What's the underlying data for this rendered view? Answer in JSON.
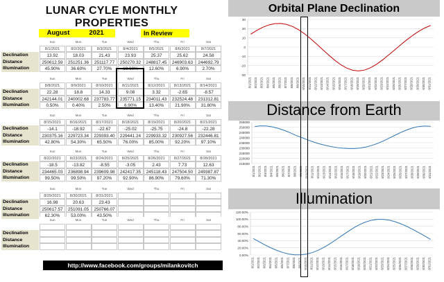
{
  "title": "LUNAR CYLE MONTHLY PROPERTIES",
  "month": "August",
  "year": "2021",
  "review_label": "In Review",
  "row_labels": [
    "Declination",
    "Distance",
    "Illumination"
  ],
  "weeks": [
    {
      "days": [
        "Sun",
        "Mon",
        "Tue",
        "Wed",
        "Thu",
        "Fri",
        "Sat"
      ],
      "dates": [
        "8/1/2021",
        "8/2/2021",
        "8/3/2021",
        "8/4/2021",
        "8/5/2021",
        "8/6/2021",
        "8/7/2021"
      ],
      "declination": [
        "13.92",
        "18.03",
        "21.43",
        "23.93",
        "25.37",
        "25.62",
        "24.58"
      ],
      "distance": [
        "250612.59",
        "251251.36",
        "251117.77",
        "250270.32",
        "248817.45",
        "246903.63",
        "244692.79"
      ],
      "illumination": [
        "45.90%",
        "36.60%",
        "27.70%",
        "19.60%",
        "12.60%",
        "6.90%",
        "2.70%"
      ]
    },
    {
      "days": [
        "Sun",
        "Mon",
        "Tue",
        "Wed",
        "Thu",
        "Fri",
        "Sat"
      ],
      "dates": [
        "8/8/2021",
        "8/9/2021",
        "8/10/2021",
        "8/11/2021",
        "8/12/2021",
        "8/13/2021",
        "8/14/2021"
      ],
      "declination": [
        "22.28",
        "18.8",
        "14.33",
        "9.08",
        "3.32",
        "-2.65",
        "-8.57"
      ],
      "distance": [
        "242144.01",
        "240002.68",
        "237783.77",
        "235771.15",
        "234011.43",
        "232524.48",
        "231312.81"
      ],
      "illumination": [
        "0.50%",
        "0.40%",
        "2.50%",
        "6.90%",
        "13.40%",
        "21.90%",
        "31.80%"
      ]
    },
    {
      "days": [
        "Sun",
        "Mon",
        "Tue",
        "Wed",
        "Thu",
        "Fri",
        "Sat"
      ],
      "dates": [
        "8/15/2021",
        "8/16/2021",
        "8/17/2021",
        "8/18/2021",
        "8/19/2021",
        "8/20/2021",
        "8/21/2021"
      ],
      "declination": [
        "-14.1",
        "-18.92",
        "-22.67",
        "-25.02",
        "-25.75",
        "-24.8",
        "-22.28"
      ],
      "distance": [
        "230375.16",
        "229723.34",
        "229393.40",
        "229441.24",
        "229933.32",
        "230927.56",
        "232446.81"
      ],
      "illumination": [
        "42.80%",
        "54.30%",
        "65.50%",
        "76.00%",
        "85.00%",
        "92.20%",
        "97.10%"
      ]
    },
    {
      "days": [
        "Sun",
        "Mon",
        "Tue",
        "Wed",
        "Thu",
        "Fri",
        "Sat"
      ],
      "dates": [
        "8/22/2021",
        "8/23/2021",
        "8/24/2021",
        "8/25/2021",
        "8/26/2021",
        "8/27/2021",
        "8/28/2021"
      ],
      "declination": [
        "-18.5",
        "-13.82",
        "-8.55",
        "-3.05",
        "2.43",
        "7.73",
        "12.63"
      ],
      "distance": [
        "234465.03",
        "236898.94",
        "239609.98",
        "242417.35",
        "245118.43",
        "247504.50",
        "249387.87"
      ],
      "illumination": [
        "99.50%",
        "99.50%",
        "97.20%",
        "92.90%",
        "86.90%",
        "79.60%",
        "71.30%"
      ]
    },
    {
      "days": [
        "Sun",
        "Mon",
        "Tue",
        "Wed",
        "Thu",
        "Fri",
        "Sat"
      ],
      "dates": [
        "8/29/2021",
        "8/30/2021",
        "8/31/2021",
        "",
        "",
        "",
        ""
      ],
      "declination": [
        "16.98",
        "20.63",
        "23.43",
        "",
        "",
        "",
        ""
      ],
      "distance": [
        "250617.57",
        "251091.05",
        "250766.07",
        "",
        "",
        "",
        ""
      ],
      "illumination": [
        "62.30%",
        "53.00%",
        "43.50%",
        "",
        "",
        "",
        ""
      ]
    },
    {
      "days": [
        "Sun",
        "Mon",
        "Tue",
        "Wed",
        "Thu",
        "Fri",
        "Sat"
      ],
      "dates": [
        "",
        "",
        "",
        "",
        "",
        "",
        ""
      ],
      "declination": [
        "",
        "",
        "",
        "",
        "",
        "",
        ""
      ],
      "distance": [
        "",
        "",
        "",
        "",
        "",
        "",
        ""
      ],
      "illumination": [
        "",
        "",
        "",
        "",
        "",
        "",
        ""
      ]
    }
  ],
  "url": "http://www.facebook.com/groups/milankovitch",
  "charts": [
    {
      "title": "Orbital Plane Declination",
      "y_ticks": [
        "30",
        "20",
        "10",
        "0",
        "-10",
        "-20",
        "-30"
      ],
      "ylim": [
        -30,
        30
      ]
    },
    {
      "title": "Distance from Earth",
      "y_ticks": [
        "255000",
        "250000",
        "245000",
        "240000",
        "235000",
        "230000",
        "225000",
        "220000",
        "215000"
      ],
      "ylim": [
        215000,
        255000
      ]
    },
    {
      "title": "Illumination",
      "y_ticks": [
        "120.00%",
        "100.00%",
        "80.00%",
        "60.00%",
        "40.00%",
        "20.00%",
        "0.00%"
      ],
      "ylim": [
        0,
        120
      ]
    }
  ],
  "x_dates": [
    "8/1/2021",
    "8/2/2021",
    "8/3/2021",
    "8/4/2021",
    "8/5/2021",
    "8/6/2021",
    "8/7/2021",
    "8/8/2021",
    "8/9/2021",
    "8/10/2021",
    "8/11/2021",
    "8/12/2021",
    "8/13/2021",
    "8/14/2021",
    "8/15/2021",
    "8/16/2021",
    "8/17/2021",
    "8/18/2021",
    "8/19/2021",
    "8/20/2021",
    "8/21/2021",
    "8/22/2021",
    "8/23/2021",
    "8/24/2021",
    "8/25/2021",
    "8/26/2021",
    "8/27/2021",
    "8/28/2021",
    "8/29/2021",
    "8/30/2021",
    "8/31/2021"
  ],
  "chart_data": [
    {
      "type": "line",
      "title": "Orbital Plane Declination",
      "x": [
        "8/1/2021",
        "8/2/2021",
        "8/3/2021",
        "8/4/2021",
        "8/5/2021",
        "8/6/2021",
        "8/7/2021",
        "8/8/2021",
        "8/9/2021",
        "8/10/2021",
        "8/11/2021",
        "8/12/2021",
        "8/13/2021",
        "8/14/2021",
        "8/15/2021",
        "8/16/2021",
        "8/17/2021",
        "8/18/2021",
        "8/19/2021",
        "8/20/2021",
        "8/21/2021",
        "8/22/2021",
        "8/23/2021",
        "8/24/2021",
        "8/25/2021",
        "8/26/2021",
        "8/27/2021",
        "8/28/2021",
        "8/29/2021",
        "8/30/2021",
        "8/31/2021"
      ],
      "series": [
        {
          "values": [
            13.92,
            18.03,
            21.43,
            23.93,
            25.37,
            25.62,
            24.58,
            22.28,
            18.8,
            14.33,
            9.08,
            3.32,
            -2.65,
            -8.57,
            -14.1,
            -18.92,
            -22.67,
            -25.02,
            -25.75,
            -24.8,
            -22.28,
            -18.5,
            -13.82,
            -8.55,
            -3.05,
            2.43,
            7.73,
            12.63,
            16.98,
            20.63,
            23.43
          ],
          "color": "#c00000"
        }
      ],
      "ylim": [
        -30,
        30
      ],
      "grid": true
    },
    {
      "type": "line",
      "title": "Distance from Earth",
      "x": [
        "8/1/2021",
        "8/2/2021",
        "8/3/2021",
        "8/4/2021",
        "8/5/2021",
        "8/6/2021",
        "8/7/2021",
        "8/8/2021",
        "8/9/2021",
        "8/10/2021",
        "8/11/2021",
        "8/12/2021",
        "8/13/2021",
        "8/14/2021",
        "8/15/2021",
        "8/16/2021",
        "8/17/2021",
        "8/18/2021",
        "8/19/2021",
        "8/20/2021",
        "8/21/2021",
        "8/22/2021",
        "8/23/2021",
        "8/24/2021",
        "8/25/2021",
        "8/26/2021",
        "8/27/2021",
        "8/28/2021",
        "8/29/2021",
        "8/30/2021",
        "8/31/2021"
      ],
      "series": [
        {
          "values": [
            250612.59,
            251251.36,
            251117.77,
            250270.32,
            248817.45,
            246903.63,
            244692.79,
            242144.01,
            240002.68,
            237783.77,
            235771.15,
            234011.43,
            232524.48,
            231312.81,
            230375.16,
            229723.34,
            229393.4,
            229441.24,
            229933.32,
            230927.56,
            232446.81,
            234465.03,
            236898.94,
            239609.98,
            242417.35,
            245118.43,
            247504.5,
            249387.87,
            250617.57,
            251091.05,
            250766.07
          ],
          "color": "#2e75b6"
        }
      ],
      "ylim": [
        215000,
        255000
      ],
      "grid": true
    },
    {
      "type": "line",
      "title": "Illumination",
      "x": [
        "8/1/2021",
        "8/2/2021",
        "8/3/2021",
        "8/4/2021",
        "8/5/2021",
        "8/6/2021",
        "8/7/2021",
        "8/8/2021",
        "8/9/2021",
        "8/10/2021",
        "8/11/2021",
        "8/12/2021",
        "8/13/2021",
        "8/14/2021",
        "8/15/2021",
        "8/16/2021",
        "8/17/2021",
        "8/18/2021",
        "8/19/2021",
        "8/20/2021",
        "8/21/2021",
        "8/22/2021",
        "8/23/2021",
        "8/24/2021",
        "8/25/2021",
        "8/26/2021",
        "8/27/2021",
        "8/28/2021",
        "8/29/2021",
        "8/30/2021",
        "8/31/2021"
      ],
      "series": [
        {
          "values": [
            45.9,
            36.6,
            27.7,
            19.6,
            12.6,
            6.9,
            2.7,
            0.5,
            0.4,
            2.5,
            6.9,
            13.4,
            21.9,
            31.8,
            42.8,
            54.3,
            65.5,
            76.0,
            85.0,
            92.2,
            97.1,
            99.5,
            99.5,
            97.2,
            92.9,
            86.9,
            79.6,
            71.3,
            62.3,
            53.0,
            43.5
          ],
          "color": "#2e75b6"
        }
      ],
      "ylim": [
        0,
        120
      ],
      "grid": true
    }
  ]
}
